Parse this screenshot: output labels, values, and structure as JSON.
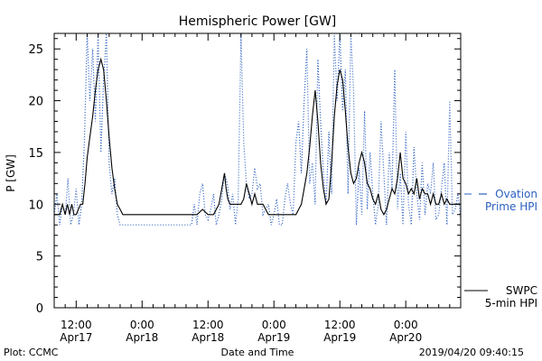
{
  "footer": {
    "plot_credit": "Plot: CCMC",
    "x_title": "Date and Time",
    "timestamp": "2019/04/20 09:40:15"
  },
  "chart_data": {
    "type": "line",
    "title": "Hemispheric Power [GW]",
    "xlabel": "Date and Time",
    "ylabel": "P [GW]",
    "x_units": "hours since Apr17 00:00",
    "xlim": [
      8.0,
      82.0
    ],
    "ylim": [
      0,
      26.5
    ],
    "y_ticks": [
      0,
      5,
      10,
      15,
      20,
      25
    ],
    "x_ticks": [
      {
        "x": 12,
        "time": "12:00",
        "day": "Apr17"
      },
      {
        "x": 24,
        "time": "0:00",
        "day": "Apr18"
      },
      {
        "x": 36,
        "time": "12:00",
        "day": "Apr18"
      },
      {
        "x": 48,
        "time": "0:00",
        "day": "Apr19"
      },
      {
        "x": 60,
        "time": "12:00",
        "day": "Apr19"
      },
      {
        "x": 72,
        "time": "0:00",
        "day": "Apr20"
      }
    ],
    "grid": false,
    "legend_position": "right",
    "series": [
      {
        "name": "SWPC 5-min HPI",
        "legend_lines": [
          "SWPC",
          "5-min HPI"
        ],
        "color": "#000000",
        "style": "solid",
        "x": [
          8.0,
          9.0,
          9.5,
          10.0,
          10.4,
          10.8,
          11.2,
          11.6,
          12.0,
          12.4,
          12.8,
          13.2,
          13.6,
          14.0,
          14.5,
          15.0,
          15.5,
          16.0,
          16.5,
          17.0,
          17.5,
          18.0,
          18.5,
          19.0,
          19.5,
          20.0,
          20.5,
          21.0,
          21.5,
          22.0,
          23.0,
          26.0,
          30.0,
          33.0,
          34.0,
          35.0,
          36.0,
          37.0,
          38.0,
          38.5,
          39.0,
          39.3,
          39.6,
          40.0,
          40.5,
          41.0,
          41.5,
          42.0,
          42.5,
          43.0,
          43.5,
          44.0,
          44.5,
          45.0,
          46.0,
          46.5,
          47.0,
          47.5,
          48.0,
          49.0,
          50.0,
          51.0,
          52.0,
          53.0,
          53.5,
          54.0,
          54.5,
          55.0,
          55.5,
          56.0,
          56.5,
          57.0,
          57.5,
          58.0,
          58.5,
          59.0,
          59.5,
          60.0,
          60.5,
          61.0,
          61.5,
          62.0,
          62.5,
          63.0,
          63.5,
          64.0,
          64.5,
          65.0,
          65.5,
          66.0,
          66.5,
          67.0,
          67.5,
          68.0,
          68.5,
          69.0,
          69.5,
          70.0,
          70.5,
          71.0,
          71.5,
          72.0,
          72.5,
          73.0,
          73.5,
          74.0,
          74.5,
          75.0,
          75.5,
          76.0,
          76.5,
          77.0,
          77.5,
          78.0,
          78.5,
          79.0,
          79.5,
          80.0,
          80.5,
          81.0,
          81.5,
          82.0
        ],
        "y": [
          9.0,
          9.0,
          10.0,
          9.0,
          10.0,
          9.0,
          10.0,
          9.0,
          9.0,
          9.5,
          10.0,
          10.0,
          12.0,
          14.5,
          16.5,
          18.5,
          21.0,
          23.0,
          24.0,
          23.0,
          20.0,
          16.5,
          13.5,
          11.5,
          10.0,
          9.5,
          9.0,
          9.0,
          9.0,
          9.0,
          9.0,
          9.0,
          9.0,
          9.0,
          9.0,
          9.5,
          9.0,
          9.0,
          10.0,
          11.5,
          13.0,
          11.5,
          10.5,
          10.0,
          10.0,
          10.0,
          10.0,
          10.0,
          10.5,
          12.0,
          11.0,
          10.0,
          11.0,
          10.0,
          10.0,
          9.5,
          9.0,
          9.0,
          9.0,
          9.0,
          9.0,
          9.0,
          9.0,
          10.0,
          11.5,
          13.0,
          15.5,
          18.5,
          21.0,
          18.0,
          14.0,
          11.5,
          10.0,
          10.5,
          14.0,
          18.5,
          21.5,
          23.0,
          22.0,
          19.0,
          15.5,
          13.0,
          12.0,
          12.5,
          14.0,
          15.0,
          14.0,
          12.0,
          11.5,
          10.5,
          10.0,
          11.0,
          9.5,
          9.0,
          9.5,
          10.5,
          11.5,
          11.0,
          12.5,
          15.0,
          12.5,
          12.0,
          11.0,
          11.5,
          11.0,
          12.5,
          10.5,
          11.5,
          11.0,
          11.0,
          10.0,
          11.0,
          10.0,
          10.0,
          11.0,
          10.0,
          10.5,
          10.0,
          10.0,
          10.0,
          10.0,
          10.0
        ]
      },
      {
        "name": "Ovation Prime HPI",
        "legend_lines": [
          "Ovation",
          "Prime HPI"
        ],
        "color": "#2a5fc0",
        "style": "dotted",
        "x": [
          8.0,
          8.5,
          9.0,
          9.5,
          10.0,
          10.5,
          11.0,
          11.5,
          12.0,
          12.5,
          13.0,
          13.5,
          14.0,
          14.5,
          15.0,
          15.5,
          16.0,
          16.5,
          17.0,
          17.5,
          18.0,
          18.5,
          19.0,
          19.5,
          20.0,
          20.5,
          21.0,
          22.0,
          23.0,
          24.0,
          25.0,
          26.0,
          27.0,
          28.0,
          29.0,
          30.0,
          31.0,
          32.0,
          33.0,
          33.5,
          34.0,
          34.5,
          35.0,
          35.5,
          36.0,
          36.5,
          37.0,
          37.5,
          38.0,
          38.5,
          39.0,
          39.5,
          40.0,
          40.5,
          41.0,
          41.5,
          42.0,
          42.5,
          43.0,
          43.5,
          44.0,
          44.5,
          45.0,
          45.5,
          46.0,
          46.5,
          47.0,
          47.5,
          48.0,
          48.5,
          49.0,
          49.5,
          50.0,
          50.5,
          51.0,
          51.5,
          52.0,
          52.5,
          53.0,
          53.5,
          54.0,
          54.5,
          55.0,
          55.5,
          56.0,
          56.5,
          57.0,
          57.5,
          58.0,
          58.5,
          59.0,
          59.5,
          60.0,
          60.5,
          61.0,
          61.5,
          62.0,
          62.5,
          63.0,
          63.5,
          64.0,
          64.5,
          65.0,
          65.5,
          66.0,
          66.5,
          67.0,
          67.5,
          68.0,
          68.5,
          69.0,
          69.5,
          70.0,
          70.5,
          71.0,
          71.5,
          72.0,
          72.5,
          73.0,
          73.5,
          74.0,
          74.5,
          75.0,
          75.5,
          76.0,
          76.5,
          77.0,
          77.5,
          78.0,
          78.5,
          79.0,
          79.5,
          80.0,
          80.5,
          81.0,
          81.5,
          82.0
        ],
        "y": [
          9.0,
          11.0,
          8.0,
          10.0,
          9.0,
          12.5,
          8.0,
          9.0,
          11.5,
          8.0,
          10.0,
          16.0,
          26.5,
          20.0,
          25.0,
          18.0,
          26.5,
          15.0,
          22.0,
          26.5,
          14.0,
          11.0,
          12.5,
          9.0,
          8.0,
          8.0,
          8.0,
          8.0,
          8.0,
          8.0,
          8.0,
          8.0,
          8.0,
          8.0,
          8.0,
          8.0,
          8.0,
          8.0,
          8.0,
          10.0,
          8.0,
          11.0,
          12.0,
          9.0,
          8.5,
          9.5,
          11.0,
          8.0,
          9.0,
          10.5,
          13.0,
          12.0,
          9.5,
          11.0,
          8.0,
          10.5,
          26.5,
          16.0,
          12.0,
          10.5,
          11.0,
          13.5,
          11.5,
          12.0,
          9.0,
          9.5,
          10.0,
          8.0,
          9.0,
          10.5,
          8.0,
          8.0,
          10.5,
          12.0,
          10.0,
          9.0,
          16.0,
          18.0,
          13.0,
          20.0,
          25.0,
          12.0,
          14.0,
          10.0,
          24.0,
          18.0,
          13.0,
          10.0,
          17.0,
          11.0,
          26.5,
          20.0,
          26.5,
          19.0,
          23.0,
          11.0,
          26.5,
          21.0,
          8.0,
          13.5,
          9.0,
          19.0,
          9.5,
          15.0,
          11.0,
          8.0,
          10.0,
          18.0,
          13.0,
          8.0,
          15.0,
          11.5,
          23.0,
          9.5,
          13.0,
          8.0,
          17.0,
          10.0,
          8.0,
          15.5,
          11.0,
          8.5,
          14.0,
          9.0,
          12.0,
          11.0,
          14.0,
          8.5,
          9.0,
          11.5,
          14.0,
          8.0,
          20.0,
          9.0,
          9.5,
          11.0,
          8.5
        ]
      }
    ]
  }
}
